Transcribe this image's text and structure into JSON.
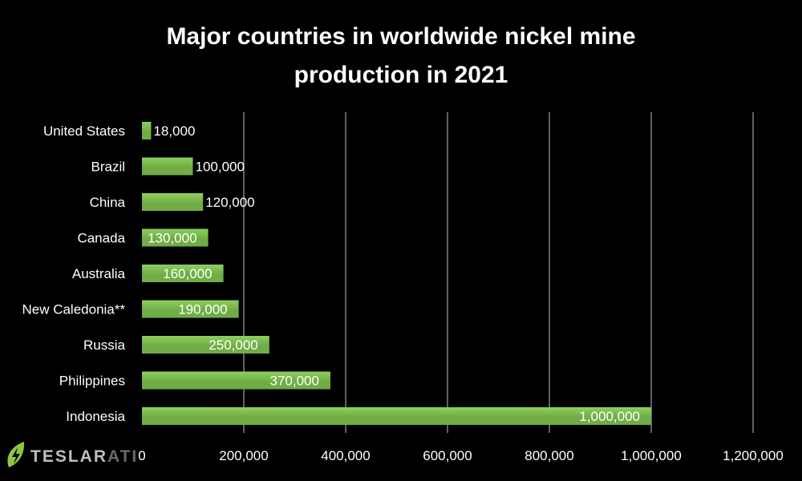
{
  "chart_data": {
    "type": "bar",
    "orientation": "horizontal",
    "title_lines": [
      "Major countries in worldwide nickel mine",
      "production in 2021"
    ],
    "categories": [
      "United States",
      "Brazil",
      "China",
      "Canada",
      "Australia",
      "New Caledonia**",
      "Russia",
      "Philippines",
      "Indonesia"
    ],
    "values": [
      18000,
      100000,
      120000,
      130000,
      160000,
      190000,
      250000,
      370000,
      1000000
    ],
    "data_labels": [
      "18,000",
      "100,000",
      "120,000",
      "130,000",
      "160,000",
      "190,000",
      "250,000",
      "370,000",
      "1,000,000"
    ],
    "x_ticks": [
      0,
      200000,
      400000,
      600000,
      800000,
      1000000,
      1200000
    ],
    "x_tick_labels": [
      "0",
      "200,000",
      "400,000",
      "600,000",
      "800,000",
      "1,000,000",
      "1,200,000"
    ],
    "xlim": [
      0,
      1200000
    ],
    "xlabel": "",
    "ylabel": "",
    "grid": "vertical",
    "legend": "none",
    "bar_color": "#70ad47",
    "bar_highlight_color": "#8fcf5f",
    "background_color": "#000000",
    "text_color": "#ffffff",
    "grid_color": "#bfbfbf"
  },
  "branding": {
    "logo_icon": "lightning-bolt-icon",
    "name_part1": "TESLAR",
    "name_part2": "ATI",
    "color_part1": "#bfbfbf",
    "color_part2": "#6a6a6a",
    "icon_color": "#8dc63f"
  }
}
